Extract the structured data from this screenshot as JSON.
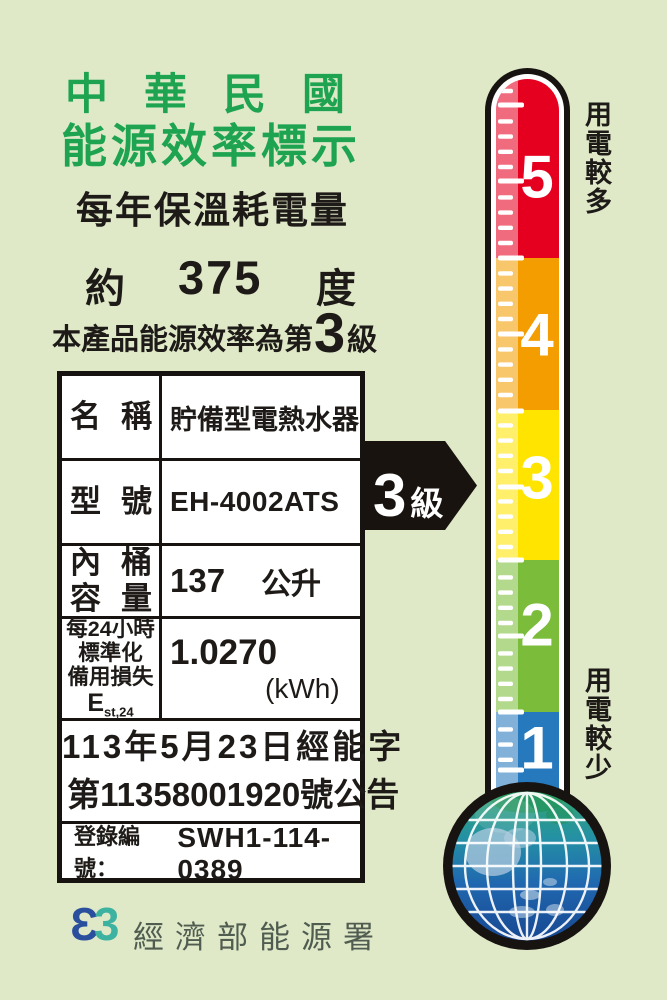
{
  "colors": {
    "background": "#dfe9c8",
    "title_green": "#1ea351",
    "text_black": "#1d1a17",
    "arrow_black": "#18130f",
    "footer_text": "#505c50",
    "logo_blue": "#2a4f9c",
    "logo_teal": "#3eb2a0"
  },
  "header": {
    "country": "中華民國",
    "title": "能源效率標示",
    "subtitle": "每年保溫耗電量",
    "approx": "約",
    "annual_consumption": "375",
    "unit": "度",
    "grade_prefix": "本產品能源效率為第",
    "grade": "3",
    "grade_suffix": "級"
  },
  "table": {
    "rows": [
      {
        "label": "名稱",
        "value": "貯備型電熱水器"
      },
      {
        "label": "型號",
        "value": "EH-4002ATS"
      },
      {
        "label_line1": "內桶",
        "label_line2": "容量",
        "value": "137",
        "unit": "公升"
      },
      {
        "label_line1": "每24小時",
        "label_line2": "標準化",
        "label_line3": "備用損失",
        "symbol": "E",
        "symbol_sub": "st,24",
        "value": "1.0270",
        "unit": "(kWh)"
      }
    ],
    "announcement_line1": "113年5月23日經能字",
    "announcement_line2": "第11358001920號公告",
    "registration_label": "登錄編號：",
    "registration_value": "SWH1-114-0389"
  },
  "grade_arrow": {
    "number": "3",
    "suffix": "級"
  },
  "thermometer": {
    "more_label": "用電較多",
    "less_label": "用電較少",
    "levels": [
      {
        "value": "5",
        "color": "#e6001f"
      },
      {
        "value": "4",
        "color": "#f39d00"
      },
      {
        "value": "3",
        "color": "#ffe400"
      },
      {
        "value": "2",
        "color": "#7bbd3a"
      },
      {
        "value": "1",
        "color": "#2779bd"
      }
    ]
  },
  "footer": {
    "agency": "經濟部能源署",
    "logo_glyph_left": "Ɛ",
    "logo_glyph_right": "3"
  }
}
